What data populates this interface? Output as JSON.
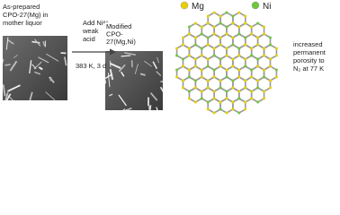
{
  "left_photo": {
    "label_lines": [
      "As-prepared",
      "CPO-27(Mg) in",
      "mother liquor"
    ]
  },
  "arrow": {
    "above_lines": [
      "Add Ni²⁺,",
      "weak",
      "acid"
    ],
    "below": "383 K, 3 d"
  },
  "right_photo": {
    "label_lines": [
      "Modified",
      "CPO-",
      "27(Mg,Ni)"
    ]
  },
  "legend": [
    {
      "label": "Mg"
    },
    {
      "label": "Ni"
    }
  ],
  "result": {
    "lines": [
      "increased",
      "permanent",
      "porosity to",
      "N₂ at 77 K"
    ]
  }
}
